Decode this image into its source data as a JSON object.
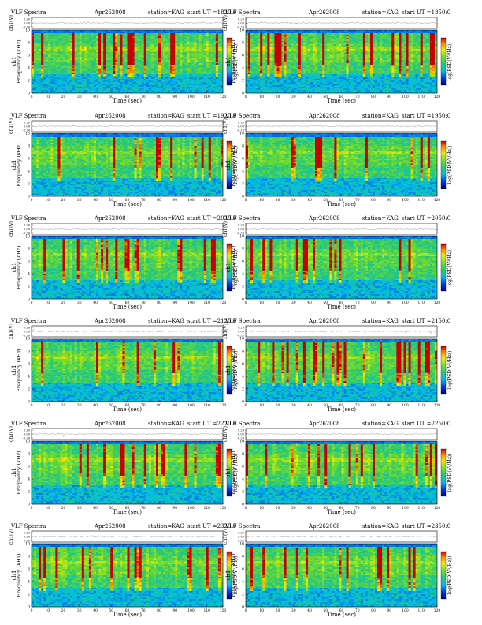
{
  "header": {
    "title": "VLF Spectra",
    "date": "Apr262008",
    "station": "station=KAG",
    "start_prefix": "start  UT  ="
  },
  "axis_text": {
    "ch_label": "ch1(V)",
    "freq_label": "ch1\nFrequency (kHz)",
    "freq_label_a": "ch1",
    "freq_label_b": "Frequency (kHz)",
    "time_label": "Time (sec)",
    "colorbar_label": "log(PSD(V²/Hz))"
  },
  "chart_data": [
    {
      "type": "heatmap",
      "panel": 1,
      "start_ut": "1820:0",
      "title": "VLF Spectra",
      "xlabel": "Time (sec)",
      "ylabel": "Frequency (kHz)",
      "xlim": [
        0,
        120
      ],
      "ylim": [
        0,
        10
      ],
      "x_ticks": [
        0,
        10,
        20,
        30,
        40,
        50,
        60,
        70,
        80,
        90,
        100,
        110,
        120
      ],
      "y_ticks": [
        0,
        2,
        4,
        6,
        8,
        10
      ],
      "ch_ticks": [
        "0.20",
        "0.00",
        "-0.20"
      ],
      "colorbar": "blue-green-yellow-red"
    },
    {
      "type": "heatmap",
      "panel": 2,
      "start_ut": "1850:0",
      "title": "VLF Spectra",
      "xlabel": "Time (sec)",
      "ylabel": "Frequency (kHz)",
      "xlim": [
        0,
        120
      ],
      "ylim": [
        0,
        10
      ],
      "x_ticks": [
        0,
        10,
        20,
        30,
        40,
        50,
        60,
        70,
        80,
        90,
        100,
        110,
        120
      ],
      "y_ticks": [
        0,
        2,
        4,
        6,
        8,
        10
      ],
      "ch_ticks": [
        "0.20",
        "0.00",
        "-0.20"
      ],
      "colorbar": "blue-green-yellow-red"
    },
    {
      "type": "heatmap",
      "panel": 3,
      "start_ut": "1920:0",
      "title": "VLF Spectra",
      "xlabel": "Time (sec)",
      "ylabel": "Frequency (kHz)",
      "xlim": [
        0,
        120
      ],
      "ylim": [
        0,
        10
      ],
      "x_ticks": [
        0,
        10,
        20,
        30,
        40,
        50,
        60,
        70,
        80,
        90,
        100,
        110,
        120
      ],
      "y_ticks": [
        0,
        2,
        4,
        6,
        8,
        10
      ],
      "ch_ticks": [
        "0.20",
        "0.00",
        "-0.20"
      ],
      "colorbar": "blue-green-yellow-red"
    },
    {
      "type": "heatmap",
      "panel": 4,
      "start_ut": "1950:0",
      "title": "VLF Spectra",
      "xlabel": "Time (sec)",
      "ylabel": "Frequency (kHz)",
      "xlim": [
        0,
        120
      ],
      "ylim": [
        0,
        10
      ],
      "x_ticks": [
        0,
        10,
        20,
        30,
        40,
        50,
        60,
        70,
        80,
        90,
        100,
        110,
        120
      ],
      "y_ticks": [
        0,
        2,
        4,
        6,
        8,
        10
      ],
      "ch_ticks": [
        "0.20",
        "0.00",
        "-0.20"
      ],
      "colorbar": "blue-green-yellow-red"
    },
    {
      "type": "heatmap",
      "panel": 5,
      "start_ut": "2020:0",
      "title": "VLF Spectra",
      "xlabel": "Time (sec)",
      "ylabel": "Frequency (kHz)",
      "xlim": [
        0,
        120
      ],
      "ylim": [
        0,
        10
      ],
      "x_ticks": [
        0,
        10,
        20,
        30,
        40,
        50,
        60,
        70,
        80,
        90,
        100,
        110,
        120
      ],
      "y_ticks": [
        0,
        2,
        4,
        6,
        8,
        10
      ],
      "ch_ticks": [
        "0.20",
        "0.00",
        "-0.20"
      ],
      "colorbar": "blue-green-yellow-red"
    },
    {
      "type": "heatmap",
      "panel": 6,
      "start_ut": "2050:0",
      "title": "VLF Spectra",
      "xlabel": "Time (sec)",
      "ylabel": "Frequency (kHz)",
      "xlim": [
        0,
        120
      ],
      "ylim": [
        0,
        10
      ],
      "x_ticks": [
        0,
        10,
        20,
        30,
        40,
        50,
        60,
        70,
        80,
        90,
        100,
        110,
        120
      ],
      "y_ticks": [
        0,
        2,
        4,
        6,
        8,
        10
      ],
      "ch_ticks": [
        "0.20",
        "0.00",
        "-0.20"
      ],
      "colorbar": "blue-green-yellow-red"
    },
    {
      "type": "heatmap",
      "panel": 7,
      "start_ut": "2120:0",
      "title": "VLF Spectra",
      "xlabel": "Time (sec)",
      "ylabel": "Frequency (kHz)",
      "xlim": [
        0,
        120
      ],
      "ylim": [
        0,
        10
      ],
      "x_ticks": [
        0,
        10,
        20,
        30,
        40,
        50,
        60,
        70,
        80,
        90,
        100,
        110,
        120
      ],
      "y_ticks": [
        0,
        2,
        4,
        6,
        8,
        10
      ],
      "ch_ticks": [
        "0.20",
        "0.00",
        "-0.20"
      ],
      "colorbar": "blue-green-yellow-red"
    },
    {
      "type": "heatmap",
      "panel": 8,
      "start_ut": "2150:0",
      "title": "VLF Spectra",
      "xlabel": "Time (sec)",
      "ylabel": "Frequency (kHz)",
      "xlim": [
        0,
        120
      ],
      "ylim": [
        0,
        10
      ],
      "x_ticks": [
        0,
        10,
        20,
        30,
        40,
        50,
        60,
        70,
        80,
        90,
        100,
        110,
        120
      ],
      "y_ticks": [
        0,
        2,
        4,
        6,
        8,
        10
      ],
      "ch_ticks": [
        "0.20",
        "0.00",
        "-0.20"
      ],
      "colorbar": "blue-green-yellow-red"
    },
    {
      "type": "heatmap",
      "panel": 9,
      "start_ut": "2220:0",
      "title": "VLF Spectra",
      "xlabel": "Time (sec)",
      "ylabel": "Frequency (kHz)",
      "xlim": [
        0,
        120
      ],
      "ylim": [
        0,
        10
      ],
      "x_ticks": [
        0,
        10,
        20,
        30,
        40,
        50,
        60,
        70,
        80,
        90,
        100,
        110,
        120
      ],
      "y_ticks": [
        0,
        2,
        4,
        6,
        8,
        10
      ],
      "ch_ticks": [
        "0.20",
        "0.00",
        "-0.20"
      ],
      "colorbar": "blue-green-yellow-red"
    },
    {
      "type": "heatmap",
      "panel": 10,
      "start_ut": "2250:0",
      "title": "VLF Spectra",
      "xlabel": "Time (sec)",
      "ylabel": "Frequency (kHz)",
      "xlim": [
        0,
        120
      ],
      "ylim": [
        0,
        10
      ],
      "x_ticks": [
        0,
        10,
        20,
        30,
        40,
        50,
        60,
        70,
        80,
        90,
        100,
        110,
        120
      ],
      "y_ticks": [
        0,
        2,
        4,
        6,
        8,
        10
      ],
      "ch_ticks": [
        "0.20",
        "0.00",
        "-0.20"
      ],
      "colorbar": "blue-green-yellow-red"
    },
    {
      "type": "heatmap",
      "panel": 11,
      "start_ut": "2320:0",
      "title": "VLF Spectra",
      "xlabel": "Time (sec)",
      "ylabel": "Frequency (kHz)",
      "xlim": [
        0,
        120
      ],
      "ylim": [
        0,
        10
      ],
      "x_ticks": [
        0,
        10,
        20,
        30,
        40,
        50,
        60,
        70,
        80,
        90,
        100,
        110,
        120
      ],
      "y_ticks": [
        0,
        2,
        4,
        6,
        8,
        10
      ],
      "ch_ticks": [
        "0.20",
        "0.00",
        "-0.20"
      ],
      "colorbar": "blue-green-yellow-red"
    },
    {
      "type": "heatmap",
      "panel": 12,
      "start_ut": "2350:0",
      "title": "VLF Spectra",
      "xlabel": "Time (sec)",
      "ylabel": "Frequency (kHz)",
      "xlim": [
        0,
        120
      ],
      "ylim": [
        0,
        10
      ],
      "x_ticks": [
        0,
        10,
        20,
        30,
        40,
        50,
        60,
        70,
        80,
        90,
        100,
        110,
        120
      ],
      "y_ticks": [
        0,
        2,
        4,
        6,
        8,
        10
      ],
      "ch_ticks": [
        "0.20",
        "0.00",
        "-0.20"
      ],
      "colorbar": "blue-green-yellow-red"
    }
  ]
}
